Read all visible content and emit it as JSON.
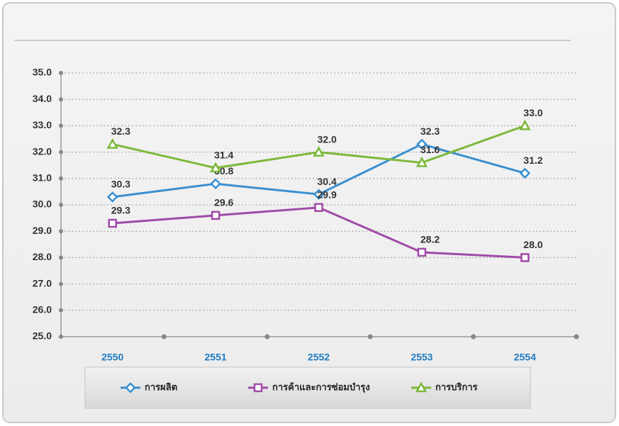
{
  "chart_data": {
    "type": "line",
    "categories": [
      "2550",
      "2551",
      "2552",
      "2553",
      "2554"
    ],
    "series": [
      {
        "name": "การผลิต",
        "color": "#3a8fd0",
        "marker": "diamond",
        "values": [
          30.3,
          30.8,
          30.4,
          32.3,
          31.2
        ],
        "value_labels": [
          "30.3",
          "30.8",
          "30.4",
          "32.3",
          "31.2"
        ]
      },
      {
        "name": "การค้าและการซ่อมบำรุง",
        "color": "#a04aa8",
        "marker": "square",
        "values": [
          29.3,
          29.6,
          29.9,
          28.2,
          28.0
        ],
        "value_labels": [
          "29.3",
          "29.6",
          "29.9",
          "28.2",
          "28.0"
        ]
      },
      {
        "name": "การบริการ",
        "color": "#7cb83a",
        "marker": "triangle",
        "values": [
          32.3,
          31.4,
          32.0,
          31.6,
          33.0
        ],
        "value_labels": [
          "32.3",
          "31.4",
          "32.0",
          "31.6",
          "33.0"
        ]
      }
    ],
    "ylim": [
      25,
      35
    ],
    "yticks": [
      {
        "value": 25,
        "label": "25.0"
      },
      {
        "value": 26,
        "label": "26.0"
      },
      {
        "value": 27,
        "label": "27.0"
      },
      {
        "value": 28,
        "label": "28.0"
      },
      {
        "value": 29,
        "label": "29.0"
      },
      {
        "value": 30,
        "label": "30.0"
      },
      {
        "value": 31,
        "label": "31.0"
      },
      {
        "value": 32,
        "label": "32.0"
      },
      {
        "value": 33,
        "label": "33.0"
      },
      {
        "value": 34,
        "label": "34.0"
      },
      {
        "value": 35,
        "label": "35.0"
      }
    ],
    "grid": true,
    "legend": "bottom"
  }
}
